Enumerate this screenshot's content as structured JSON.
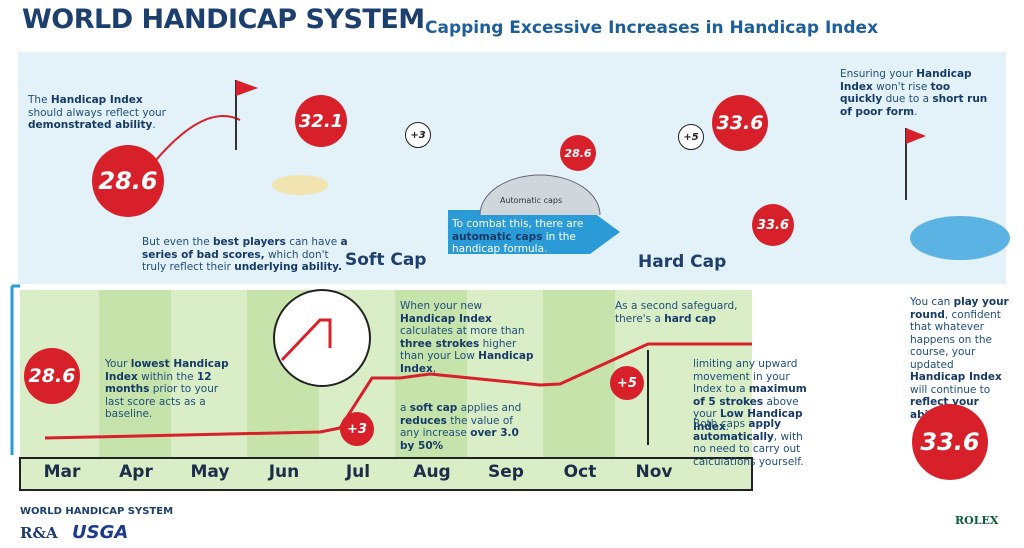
{
  "header": {
    "title": "WORLD HANDICAP SYSTEM",
    "subtitle": "Capping Excessive Increases in Handicap Index"
  },
  "top": {
    "intro": [
      "The ",
      "Handicap Index",
      " should always reflect your ",
      "demonstrated ability",
      "."
    ],
    "bad_scores": [
      "But even the ",
      "best players",
      " can have ",
      "a series of bad scores,",
      " which don't truly reflect their ",
      "underlying ability."
    ],
    "combat": [
      "To combat this, there are ",
      "automatic caps",
      " in the handicap formula."
    ],
    "dial": "Automatic caps",
    "soft_cap": "Soft Cap",
    "hard_cap": "Hard Cap",
    "ensure": [
      "Ensuring your ",
      "Handicap Index",
      " won't rise ",
      "too quickly",
      " due to a ",
      "short run of poor form",
      "."
    ],
    "badges": [
      "28.6",
      "32.1",
      "+3",
      "28.6",
      "+5",
      "33.6",
      "33.6"
    ]
  },
  "timeline": {
    "lowest": [
      "Your ",
      "lowest Handicap Index",
      " within the ",
      "12 months",
      " prior to your last score acts as a baseline."
    ],
    "new_index": [
      "When your new ",
      "Handicap Index",
      " calculates at more than ",
      "three strokes",
      " higher than your Low ",
      "Handicap Index",
      ","
    ],
    "soft": [
      "a ",
      "soft cap",
      " applies and ",
      "reduces",
      " the value of any increase ",
      "over 3.0 by 50%"
    ],
    "second": [
      "As a second safeguard, there's a ",
      "hard cap"
    ],
    "limit": [
      "limiting any upward movement in your Index to a ",
      "maximum of 5 strokes",
      " above your ",
      "Low Handicap Index",
      "."
    ],
    "both": [
      "Both caps ",
      "apply automatically",
      ", with no need to carry out calculations yourself."
    ],
    "badges": [
      "28.6",
      "+3",
      "+5"
    ],
    "months": [
      "Mar",
      "Apr",
      "May",
      "Jun",
      "Jul",
      "Aug",
      "Sep",
      "Oct",
      "Nov"
    ]
  },
  "closing": {
    "play": [
      "You can ",
      "play your round",
      ", confident that whatever happens on the course, your updated ",
      "Handicap Index",
      " will continue to ",
      "reflect your ability",
      "."
    ],
    "badge": "33.6"
  },
  "footer": {
    "brand": "WORLD HANDICAP SYSTEM",
    "ra": "R&A",
    "usga": "USGA",
    "rolex": "ROLEX"
  }
}
